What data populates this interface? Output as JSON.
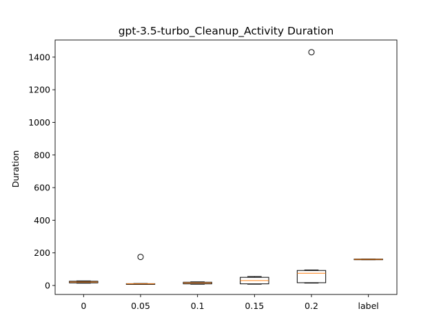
{
  "chart_data": {
    "type": "boxplot",
    "title": "gpt-3.5-turbo_Cleanup_Activity Duration",
    "xlabel": "",
    "ylabel": "Duration",
    "ylim": [
      -55,
      1505
    ],
    "yticks": [
      0,
      200,
      400,
      600,
      800,
      1000,
      1200,
      1400
    ],
    "categories": [
      "0",
      "0.05",
      "0.1",
      "0.15",
      "0.2",
      "label"
    ],
    "boxes": [
      {
        "category": "0",
        "whisker_low": 14,
        "q1": 16,
        "median": 21,
        "q3": 26,
        "whisker_high": 28,
        "outliers": []
      },
      {
        "category": "0.05",
        "whisker_low": 8,
        "q1": 9,
        "median": 10,
        "q3": 11,
        "whisker_high": 12,
        "outliers": [
          175
        ]
      },
      {
        "category": "0.1",
        "whisker_low": 8,
        "q1": 10,
        "median": 16,
        "q3": 20,
        "whisker_high": 22,
        "outliers": []
      },
      {
        "category": "0.15",
        "whisker_low": 8,
        "q1": 10,
        "median": 30,
        "q3": 50,
        "whisker_high": 55,
        "outliers": []
      },
      {
        "category": "0.2",
        "whisker_low": 15,
        "q1": 17,
        "median": 75,
        "q3": 92,
        "whisker_high": 95,
        "outliers": [
          1430
        ]
      },
      {
        "category": "label",
        "whisker_low": 158,
        "q1": 158,
        "median": 160,
        "q3": 162,
        "whisker_high": 162,
        "outliers": []
      }
    ],
    "colors": {
      "box": "#000000",
      "median": "#ff7f0e",
      "outlier": "#000000"
    },
    "grid": false,
    "legend": "none"
  }
}
